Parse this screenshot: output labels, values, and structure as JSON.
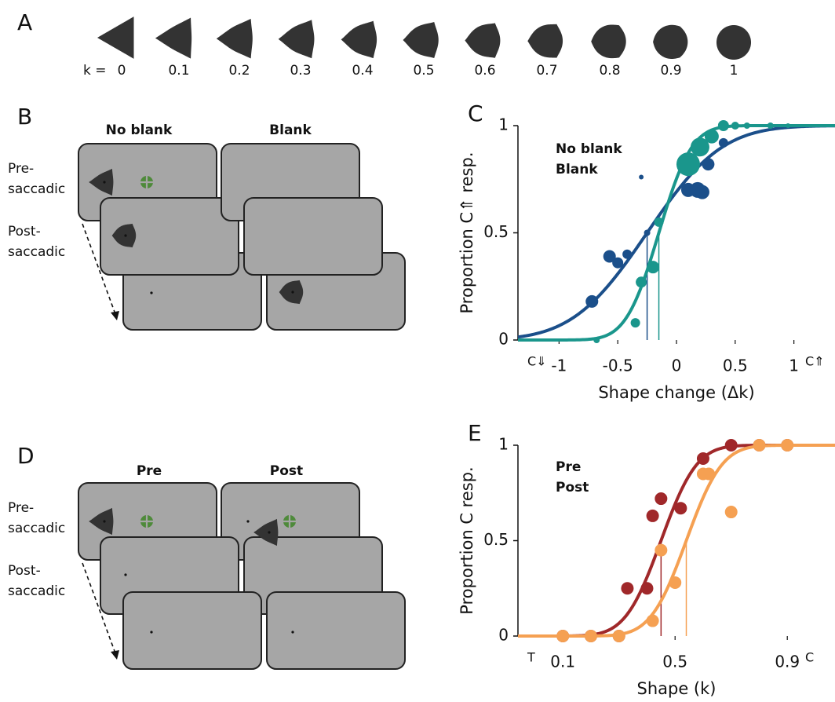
{
  "panel_a": {
    "label": "A",
    "k_label": "k =",
    "k_values": [
      0,
      0.1,
      0.2,
      0.3,
      0.4,
      0.5,
      0.6,
      0.7,
      0.8,
      0.9,
      1
    ]
  },
  "panel_b": {
    "label": "B",
    "columns": [
      "No blank",
      "Blank"
    ],
    "rows": [
      [
        "Pre-",
        "saccadic"
      ],
      [
        "Post-",
        "saccadic"
      ]
    ]
  },
  "panel_d": {
    "label": "D",
    "columns": [
      "Pre",
      "Post"
    ],
    "rows": [
      [
        "Pre-",
        "saccadic"
      ],
      [
        "Post-",
        "saccadic"
      ]
    ]
  },
  "chart_data": [
    {
      "type": "scatter",
      "label": "C",
      "x_label": "Shape change (Δk)",
      "y_label": "Proportion C⇑ resp.",
      "xlim": [
        -1.35,
        1.35
      ],
      "ylim": [
        0,
        1
      ],
      "xticks": [
        -1,
        -0.5,
        0,
        0.5,
        1
      ],
      "yticks": [
        0,
        0.5,
        1
      ],
      "x_end_labels": [
        "C⇓",
        "C⇑"
      ],
      "series": [
        {
          "name": "No blank",
          "color": "#1b4f8a",
          "x": [
            -0.72,
            -0.57,
            -0.5,
            -0.42,
            -0.3,
            -0.25,
            0.1,
            0.18,
            0.22,
            0.27,
            0.4,
            0.05,
            0.62
          ],
          "values": [
            0.18,
            0.39,
            0.36,
            0.4,
            0.76,
            0.5,
            0.7,
            0.7,
            0.69,
            0.82,
            0.92,
            0.85,
            1.0
          ],
          "sizes": [
            8,
            8,
            7,
            6,
            3,
            4,
            9,
            10,
            9,
            8,
            6,
            3,
            2
          ],
          "pse": -0.25,
          "sd": 0.5
        },
        {
          "name": "Blank",
          "color": "#1a968c",
          "x": [
            -0.68,
            -0.35,
            -0.3,
            -0.2,
            -0.15,
            0.1,
            0.2,
            0.3,
            0.4,
            0.5,
            0.6,
            0.8,
            0.95
          ],
          "values": [
            0,
            0.08,
            0.27,
            0.34,
            0.55,
            0.82,
            0.9,
            0.95,
            1,
            1,
            1,
            1,
            1
          ],
          "sizes": [
            4,
            6,
            7,
            8,
            6,
            15,
            12,
            9,
            7,
            5,
            4,
            4,
            3
          ],
          "pse": -0.15,
          "sd": 0.22
        }
      ]
    },
    {
      "type": "scatter",
      "label": "E",
      "x_label": "Shape (k)",
      "y_label": "Proportion C resp.",
      "xlim": [
        -0.06,
        1.07
      ],
      "ylim": [
        0,
        1
      ],
      "xticks": [
        0.1,
        0.5,
        0.9
      ],
      "yticks": [
        0,
        0.5,
        1
      ],
      "x_end_labels": [
        "T",
        "C"
      ],
      "series": [
        {
          "name": "Pre",
          "color": "#a0282a",
          "x": [
            0.1,
            0.2,
            0.3,
            0.33,
            0.4,
            0.42,
            0.45,
            0.52,
            0.6,
            0.7,
            0.8,
            0.9
          ],
          "values": [
            0,
            0,
            0,
            0.25,
            0.25,
            0.63,
            0.72,
            0.67,
            0.93,
            1,
            1,
            1
          ],
          "pse": 0.45,
          "sd": 0.1
        },
        {
          "name": "Post",
          "color": "#f5a052",
          "x": [
            0.1,
            0.2,
            0.3,
            0.42,
            0.45,
            0.5,
            0.6,
            0.62,
            0.7,
            0.8,
            0.9
          ],
          "values": [
            0,
            0,
            0,
            0.08,
            0.45,
            0.28,
            0.85,
            0.85,
            0.65,
            1,
            1
          ],
          "pse": 0.54,
          "sd": 0.1
        }
      ]
    }
  ]
}
